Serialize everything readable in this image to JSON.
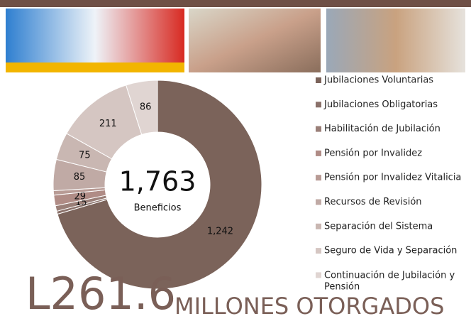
{
  "chart_data": {
    "type": "donut",
    "categories": [
      "Jubilaciones Voluntarias",
      "Jubilaciones Obligatorias",
      "Habilitación de Jubilación",
      "Pensión por Invalidez",
      "Pensión por Invalidez Vitalicia",
      "Recursos de Revisión",
      "Separación del Sistema",
      "Seguro de Vida y Separación",
      "Continuación de Jubilación y Pensión"
    ],
    "values": [
      1242,
      8,
      15,
      29,
      12,
      85,
      75,
      211,
      86
    ],
    "value_labels": [
      "1,242",
      null,
      "15",
      "29",
      null,
      "85",
      "75",
      "211",
      "86"
    ],
    "colors": [
      "#7b635a",
      "#8a716a",
      "#9a7f78",
      "#b08c86",
      "#b89b95",
      "#c0aaa5",
      "#c9b7b2",
      "#d5c6c2",
      "#e0d5d2"
    ],
    "center_text": "1,763",
    "center_subtitle": "Beneficios",
    "headline_amount": "L261.6",
    "headline_text": "MILLONES OTORGADOS",
    "legend": "right"
  }
}
